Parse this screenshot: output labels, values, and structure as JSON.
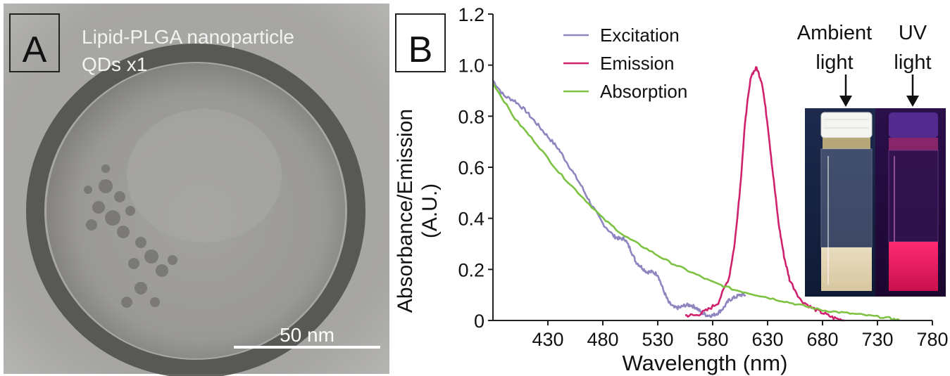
{
  "panel_a": {
    "letter": "A",
    "title_line1": "Lipid-PLGA nanoparticle",
    "title_line2": "QDs x1",
    "scale_bar_label": "50 nm"
  },
  "panel_b": {
    "letter": "B",
    "inset": {
      "ambient_label_line1": "Ambient",
      "ambient_label_line2": "light",
      "uv_label_line1": "UV",
      "uv_label_line2": "light"
    }
  },
  "chart_data": {
    "type": "line",
    "xlabel": "Wavelength (nm)",
    "ylabel_line1": "Absorbance/Emission",
    "ylabel_line2": "(A.U.)",
    "xlim": [
      380,
      780
    ],
    "ylim": [
      0,
      1.2
    ],
    "x_ticks": [
      430,
      480,
      530,
      580,
      630,
      680,
      730,
      780
    ],
    "y_ticks": [
      0,
      0.2,
      0.4,
      0.6,
      0.8,
      1.0,
      1.2
    ],
    "x_tick_labels": [
      "430",
      "480",
      "530",
      "580",
      "630",
      "680",
      "730",
      "780"
    ],
    "y_tick_labels": [
      "0",
      "0.2",
      "0.4",
      "0.6",
      "0.8",
      "1.0",
      "1.2"
    ],
    "legend_position": "top-center",
    "series": [
      {
        "name": "Excitation",
        "color": "#8f86c0",
        "x": [
          380,
          390,
          400,
          410,
          420,
          430,
          440,
          450,
          460,
          470,
          480,
          490,
          495,
          500,
          505,
          510,
          515,
          520,
          525,
          530,
          535,
          540,
          545,
          550,
          555,
          560,
          565,
          570,
          575,
          580,
          585,
          590,
          595,
          600,
          605,
          610
        ],
        "y": [
          0.94,
          0.88,
          0.86,
          0.82,
          0.77,
          0.72,
          0.67,
          0.6,
          0.53,
          0.45,
          0.38,
          0.33,
          0.32,
          0.32,
          0.28,
          0.23,
          0.21,
          0.19,
          0.19,
          0.18,
          0.12,
          0.07,
          0.05,
          0.05,
          0.06,
          0.06,
          0.05,
          0.03,
          0.02,
          0.02,
          0.03,
          0.05,
          0.08,
          0.09,
          0.1,
          0.1
        ]
      },
      {
        "name": "Emission",
        "color": "#d0216e",
        "x": [
          555,
          565,
          575,
          585,
          595,
          600,
          605,
          610,
          615,
          620,
          625,
          630,
          635,
          640,
          645,
          650,
          660,
          670,
          680,
          690,
          700
        ],
        "y": [
          0.02,
          0.02,
          0.04,
          0.07,
          0.17,
          0.3,
          0.52,
          0.8,
          0.96,
          0.99,
          0.93,
          0.77,
          0.57,
          0.38,
          0.25,
          0.16,
          0.08,
          0.05,
          0.03,
          0.01,
          0.0
        ]
      },
      {
        "name": "Absorption",
        "color": "#7dc242",
        "x": [
          380,
          400,
          420,
          440,
          460,
          480,
          500,
          520,
          540,
          560,
          580,
          600,
          620,
          640,
          660,
          680,
          700,
          720,
          740,
          750
        ],
        "y": [
          0.93,
          0.79,
          0.69,
          0.58,
          0.49,
          0.4,
          0.33,
          0.28,
          0.23,
          0.19,
          0.15,
          0.12,
          0.1,
          0.08,
          0.06,
          0.04,
          0.03,
          0.02,
          0.01,
          0.0
        ]
      }
    ]
  }
}
